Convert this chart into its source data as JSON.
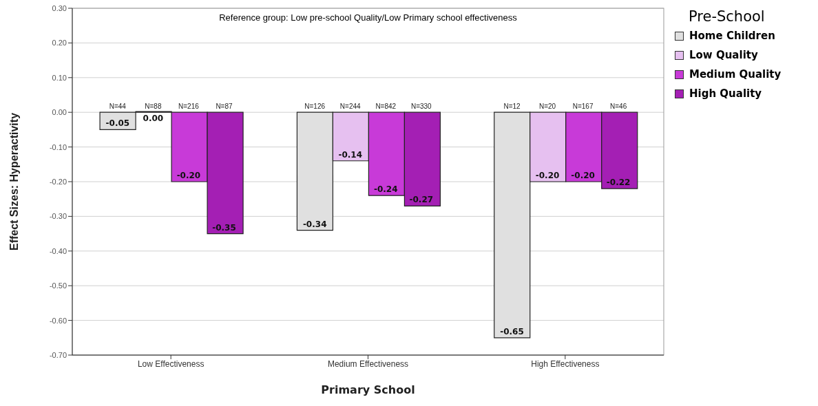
{
  "chart_data": {
    "type": "bar",
    "title": "Reference group: Low pre-school Quality/Low Primary school effectiveness",
    "xlabel": "Primary School",
    "ylabel": "Effect Sizes:  Hyperactivity",
    "legend_title": "Pre-School",
    "categories": [
      "Low Effectiveness",
      "Medium Effectiveness",
      "High Effectiveness"
    ],
    "series": [
      {
        "name": "Home Children",
        "color": "#e0e0e0",
        "values": [
          -0.05,
          -0.34,
          -0.65
        ],
        "value_labels": [
          "-0.05",
          "-0.34",
          "-0.65"
        ]
      },
      {
        "name": "Low Quality",
        "color": "#e6c0f0",
        "values": [
          0,
          -0.14,
          -0.2
        ],
        "value_labels": [
          "0.00",
          "-0.14",
          "-0.20"
        ]
      },
      {
        "name": "Medium Quality",
        "color": "#c83ad8",
        "values": [
          -0.2,
          -0.24,
          -0.2
        ],
        "value_labels": [
          "-0.20",
          "-0.24",
          "-0.20"
        ]
      },
      {
        "name": "High Quality",
        "color": "#a41fb4",
        "values": [
          -0.35,
          -0.27,
          -0.22
        ],
        "value_labels": [
          "-0.35",
          "-0.27",
          "-0.22"
        ]
      }
    ],
    "ylim": [
      -0.7,
      0.3
    ],
    "yticks": [
      {
        "value": 0.3,
        "label": "0.30"
      },
      {
        "value": 0.2,
        "label": "0.20"
      },
      {
        "value": 0.1,
        "label": "0.10"
      },
      {
        "value": 0,
        "label": "0.00"
      },
      {
        "value": -0.1,
        "label": "-0.10"
      },
      {
        "value": -0.2,
        "label": "-0.20"
      },
      {
        "value": -0.3,
        "label": "-0.30"
      },
      {
        "value": -0.4,
        "label": "-0.40"
      },
      {
        "value": -0.5,
        "label": "-0.50"
      },
      {
        "value": -0.6,
        "label": "-0.60"
      },
      {
        "value": -0.7,
        "label": "-0.70"
      }
    ],
    "grid": "y",
    "legend": "top right",
    "annotations": [
      "N=44",
      "N=88",
      "N=216",
      "N=87",
      "N=126",
      "N=244",
      "N=842",
      "N=330",
      "N=12",
      "N=20",
      "N=167",
      "N=46"
    ]
  }
}
